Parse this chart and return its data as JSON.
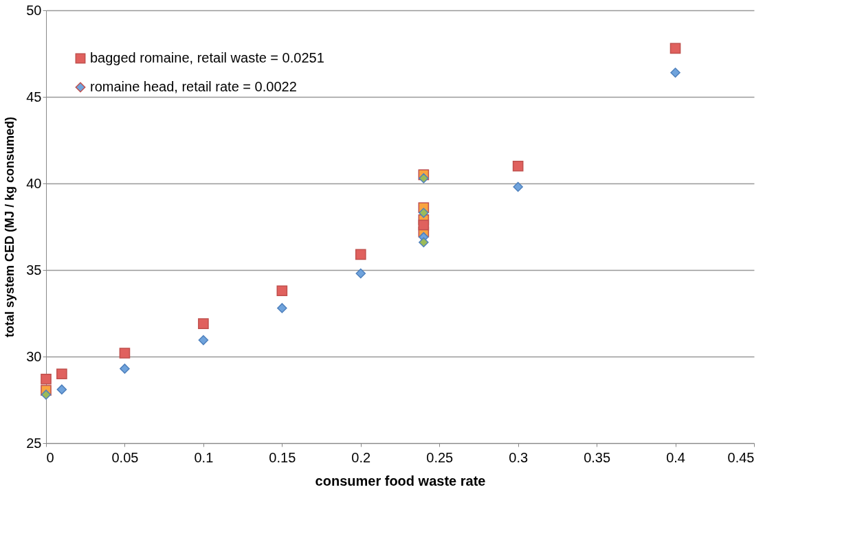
{
  "chart_data": {
    "type": "scatter",
    "xlabel": "consumer food waste rate",
    "ylabel": "total system CED (MJ / kg consumed)",
    "xlim": [
      0,
      0.45
    ],
    "xticks": [
      0,
      0.05,
      0.1,
      0.15,
      0.2,
      0.25,
      0.3,
      0.35,
      0.4,
      0.45
    ],
    "ylim": [
      25,
      50
    ],
    "yticks": [
      25,
      30,
      35,
      40,
      45,
      50
    ],
    "grid": "y",
    "legend": "top left",
    "series": [
      {
        "color": "#f9a440",
        "marker": "square",
        "x": [
          0,
          0.24,
          0.24,
          0.24,
          0.24
        ],
        "values": [
          28.05,
          40.5,
          38.6,
          37.9,
          37.2
        ]
      },
      {
        "name": "bagged romaine, retail waste = 0.0251",
        "color": "#e0615e",
        "marker": "square",
        "x": [
          0,
          0.01,
          0.05,
          0.1,
          0.15,
          0.2,
          0.24,
          0.3,
          0.4
        ],
        "values": [
          28.7,
          29.0,
          30.2,
          31.9,
          33.8,
          35.9,
          37.6,
          41.0,
          47.8
        ]
      },
      {
        "name": "romaine head, retail rate = 0.0022",
        "color": "#6fa3dc",
        "marker": "diamond",
        "x": [
          0.01,
          0.05,
          0.1,
          0.15,
          0.2,
          0.24,
          0.3,
          0.4
        ],
        "values": [
          28.1,
          29.3,
          30.95,
          32.8,
          34.8,
          36.9,
          39.8,
          46.4
        ]
      },
      {
        "color": "#9bbb59",
        "marker": "diamond",
        "x": [
          0,
          0.24,
          0.24,
          0.24
        ],
        "values": [
          27.8,
          40.3,
          38.3,
          36.6
        ]
      }
    ]
  }
}
